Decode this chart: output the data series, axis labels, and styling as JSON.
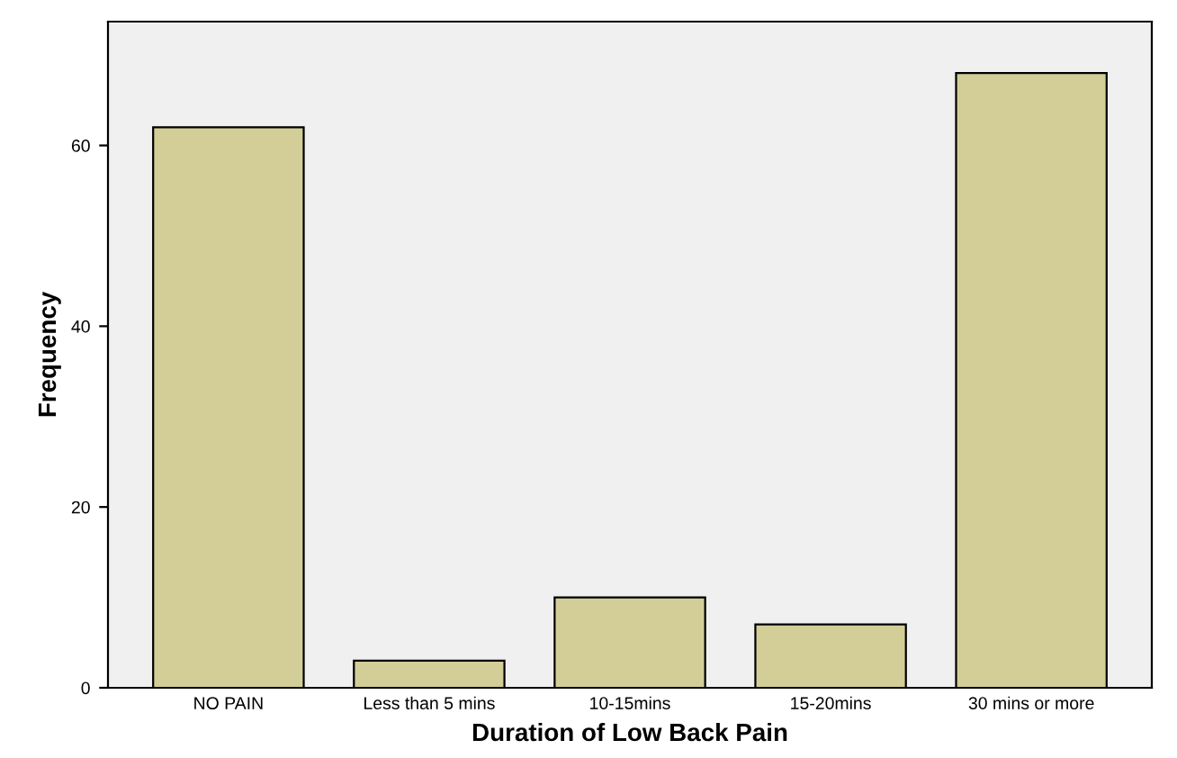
{
  "chart_data": {
    "type": "bar",
    "xlabel": "Duration of Low Back Pain",
    "ylabel": "Frequency",
    "categories": [
      "NO PAIN",
      "Less than 5 mins",
      "10-15mins",
      "15-20mins",
      "30 mins or more"
    ],
    "values": [
      62,
      3,
      10,
      7,
      68
    ],
    "color": "#d3ce98",
    "ylim": [
      0,
      73.7
    ],
    "yticks": [
      0,
      20,
      40,
      60
    ],
    "grid": false
  }
}
